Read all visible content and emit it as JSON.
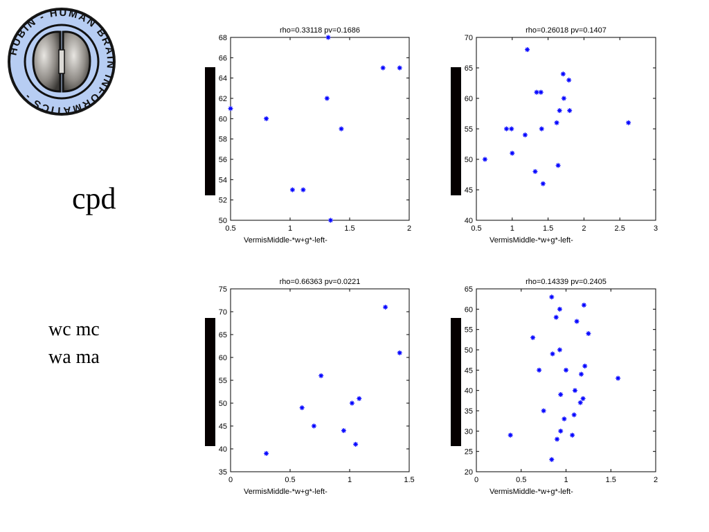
{
  "logo": {
    "ring_text": "HUBIN - HUMAN BRAIN INFORMATICS -",
    "ring_color": "#b7cdf3",
    "icon": "brain-icon"
  },
  "labels": {
    "cpd": "cpd",
    "wc_line1": "wc mc",
    "wc_line2": "wa ma"
  },
  "colors": {
    "marker": "#0000ff",
    "bar": "#050000"
  },
  "chart_data": [
    {
      "type": "scatter",
      "title": "rho=0.33118 pv=0.1686",
      "xlabel": "VermisMiddle-*w+g*-left-",
      "ylabel": "",
      "xlim": [
        0.5,
        2
      ],
      "ylim": [
        50,
        68
      ],
      "xticks": [
        0.5,
        1,
        1.5,
        2
      ],
      "yticks": [
        50,
        52,
        54,
        56,
        58,
        60,
        62,
        64,
        66,
        68
      ],
      "grid": false,
      "points": [
        {
          "x": 0.5,
          "y": 61
        },
        {
          "x": 0.8,
          "y": 60
        },
        {
          "x": 1.02,
          "y": 53
        },
        {
          "x": 1.11,
          "y": 53
        },
        {
          "x": 1.31,
          "y": 62
        },
        {
          "x": 1.32,
          "y": 68
        },
        {
          "x": 1.34,
          "y": 50
        },
        {
          "x": 1.43,
          "y": 59
        },
        {
          "x": 1.78,
          "y": 65
        },
        {
          "x": 1.92,
          "y": 65
        }
      ]
    },
    {
      "type": "scatter",
      "title": "rho=0.26018 pv=0.1407",
      "xlabel": "VermisMiddle-*w+g*-left-",
      "ylabel": "",
      "xlim": [
        0.5,
        3
      ],
      "ylim": [
        40,
        70
      ],
      "xticks": [
        0.5,
        1,
        1.5,
        2,
        2.5,
        3
      ],
      "yticks": [
        40,
        45,
        50,
        55,
        60,
        65,
        70
      ],
      "grid": false,
      "points": [
        {
          "x": 0.62,
          "y": 50
        },
        {
          "x": 0.92,
          "y": 55
        },
        {
          "x": 0.99,
          "y": 55
        },
        {
          "x": 1.0,
          "y": 51
        },
        {
          "x": 1.18,
          "y": 54
        },
        {
          "x": 1.21,
          "y": 68
        },
        {
          "x": 1.32,
          "y": 48
        },
        {
          "x": 1.34,
          "y": 61
        },
        {
          "x": 1.4,
          "y": 61
        },
        {
          "x": 1.41,
          "y": 55
        },
        {
          "x": 1.43,
          "y": 46
        },
        {
          "x": 1.62,
          "y": 56
        },
        {
          "x": 1.64,
          "y": 49
        },
        {
          "x": 1.66,
          "y": 58
        },
        {
          "x": 1.71,
          "y": 64
        },
        {
          "x": 1.72,
          "y": 60
        },
        {
          "x": 1.79,
          "y": 63
        },
        {
          "x": 1.8,
          "y": 58
        },
        {
          "x": 2.62,
          "y": 56
        }
      ]
    },
    {
      "type": "scatter",
      "title": "rho=0.66363 pv=0.0221",
      "xlabel": "VermisMiddle-*w+g*-left-",
      "ylabel": "",
      "xlim": [
        0,
        1.5
      ],
      "ylim": [
        35,
        75
      ],
      "xticks": [
        0,
        0.5,
        1,
        1.5
      ],
      "yticks": [
        35,
        40,
        45,
        50,
        55,
        60,
        65,
        70,
        75
      ],
      "grid": false,
      "points": [
        {
          "x": 0.3,
          "y": 39
        },
        {
          "x": 0.6,
          "y": 49
        },
        {
          "x": 0.7,
          "y": 45
        },
        {
          "x": 0.76,
          "y": 56
        },
        {
          "x": 0.95,
          "y": 44
        },
        {
          "x": 1.02,
          "y": 50
        },
        {
          "x": 1.05,
          "y": 41
        },
        {
          "x": 1.08,
          "y": 51
        },
        {
          "x": 1.3,
          "y": 71
        },
        {
          "x": 1.42,
          "y": 61
        }
      ]
    },
    {
      "type": "scatter",
      "title": "rho=0.14339 pv=0.2405",
      "xlabel": "VermisMiddle-*w+g*-left-",
      "ylabel": "",
      "xlim": [
        0,
        2
      ],
      "ylim": [
        20,
        65
      ],
      "xticks": [
        0,
        0.5,
        1,
        1.5,
        2
      ],
      "yticks": [
        20,
        25,
        30,
        35,
        40,
        45,
        50,
        55,
        60,
        65
      ],
      "grid": false,
      "points": [
        {
          "x": 0.38,
          "y": 29
        },
        {
          "x": 0.63,
          "y": 53
        },
        {
          "x": 0.7,
          "y": 45
        },
        {
          "x": 0.75,
          "y": 35
        },
        {
          "x": 0.84,
          "y": 23
        },
        {
          "x": 0.84,
          "y": 63
        },
        {
          "x": 0.85,
          "y": 49
        },
        {
          "x": 0.89,
          "y": 58
        },
        {
          "x": 0.9,
          "y": 28
        },
        {
          "x": 0.93,
          "y": 60
        },
        {
          "x": 0.93,
          "y": 50
        },
        {
          "x": 0.94,
          "y": 39
        },
        {
          "x": 0.94,
          "y": 30
        },
        {
          "x": 0.98,
          "y": 33
        },
        {
          "x": 1.0,
          "y": 45
        },
        {
          "x": 1.07,
          "y": 29
        },
        {
          "x": 1.09,
          "y": 34
        },
        {
          "x": 1.1,
          "y": 40
        },
        {
          "x": 1.12,
          "y": 57
        },
        {
          "x": 1.16,
          "y": 37
        },
        {
          "x": 1.17,
          "y": 44
        },
        {
          "x": 1.19,
          "y": 38
        },
        {
          "x": 1.2,
          "y": 61
        },
        {
          "x": 1.21,
          "y": 46
        },
        {
          "x": 1.25,
          "y": 54
        },
        {
          "x": 1.58,
          "y": 43
        }
      ]
    }
  ]
}
